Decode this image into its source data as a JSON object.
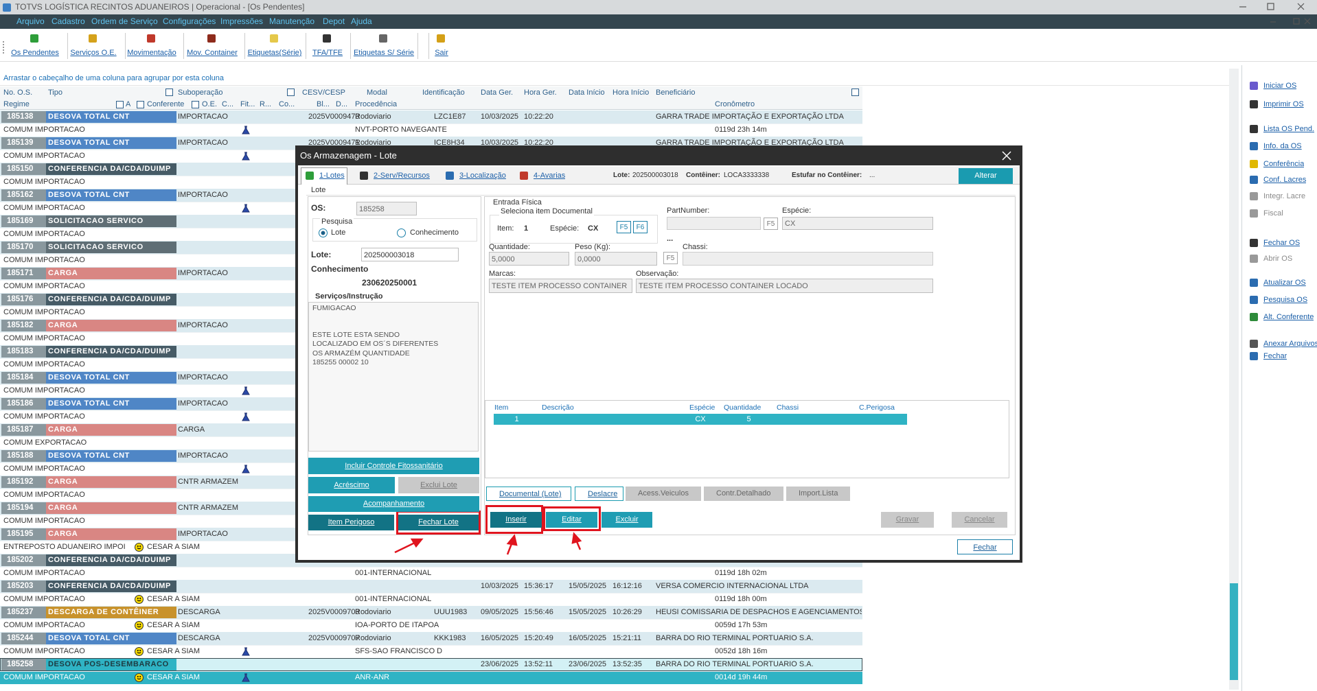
{
  "window_title": "TOTVS LOGÍSTICA RECINTOS ADUANEIROS | Operacional - [Os Pendentes]",
  "menu": [
    "Arquivo",
    "Cadastro",
    "Ordem de Serviço",
    "Configurações",
    "Impressões",
    "Manutenção",
    "Depot",
    "Ajuda"
  ],
  "toolbar": [
    "Os Pendentes",
    "Serviços O.E.",
    "Movimentação",
    "Mov. Container",
    "Etiquetas(Série)",
    "TFA/TFE",
    "Etiquetas S/ Série",
    "Sair"
  ],
  "group_hint": "Arrastar o cabeçalho de uma coluna para agrupar por esta coluna",
  "columns": {
    "row1": [
      "No. O.S.",
      "Tipo",
      "Suboperação",
      "CESV/CESP",
      "Modal",
      "Identificação",
      "Data Ger.",
      "Hora Ger.",
      "Data Início",
      "Hora Início",
      "Beneficiário"
    ],
    "row2": [
      "Regime",
      "A",
      "Conferente",
      "O.E.",
      "C...",
      "Fit...",
      "R...",
      "Co...",
      "Bl...",
      "D...",
      "Procedência",
      "Cronômetro"
    ]
  },
  "rows": [
    {
      "os": "185138",
      "tipo": "DESOVA TOTAL CNT",
      "color": "#4f86c6",
      "subop": "IMPORTACAO",
      "cesv": "2025V0009473",
      "modal": "Rodoviario",
      "ident": "LZC1E87",
      "data_ger": "10/03/2025",
      "hora_ger": "10:22:20",
      "benef": "GARRA TRADE IMPORTAÇÃO E EXPORTAÇÃO LTDA",
      "regime": "COMUM IMPORTACAO",
      "flask": true,
      "proc": "NVT-PORTO NAVEGANTE",
      "crono": "0119d 23h 14m"
    },
    {
      "os": "185139",
      "tipo": "DESOVA TOTAL CNT",
      "color": "#4f86c6",
      "subop": "IMPORTACAO",
      "cesv": "2025V0009471",
      "modal": "Rodoviario",
      "ident": "ICE8H34",
      "data_ger": "10/03/2025",
      "hora_ger": "10:22:20",
      "benef": "GARRA TRADE IMPORTAÇÃO E EXPORTAÇÃO LTDA",
      "regime": "COMUM IMPORTACAO",
      "flask": true
    },
    {
      "os": "185150",
      "tipo": "CONFERENCIA DA/CDA/DUIMP",
      "color": "#465b66",
      "regime": "COMUM IMPORTACAO"
    },
    {
      "os": "185162",
      "tipo": "DESOVA TOTAL CNT",
      "color": "#4f86c6",
      "subop": "IMPORTACAO",
      "regime": "COMUM IMPORTACAO",
      "flask": true
    },
    {
      "os": "185169",
      "tipo": "SOLICITACAO SERVICO",
      "color": "#5f6e75",
      "regime": "COMUM IMPORTACAO"
    },
    {
      "os": "185170",
      "tipo": "SOLICITACAO SERVICO",
      "color": "#5f6e75",
      "regime": "COMUM IMPORTACAO"
    },
    {
      "os": "185171",
      "tipo": "CARGA",
      "color": "#d98683",
      "subop": "IMPORTACAO",
      "regime": "COMUM IMPORTACAO"
    },
    {
      "os": "185176",
      "tipo": "CONFERENCIA DA/CDA/DUIMP",
      "color": "#465b66",
      "regime": "COMUM IMPORTACAO"
    },
    {
      "os": "185182",
      "tipo": "CARGA",
      "color": "#d98683",
      "subop": "IMPORTACAO",
      "regime": "COMUM IMPORTACAO"
    },
    {
      "os": "185183",
      "tipo": "CONFERENCIA DA/CDA/DUIMP",
      "color": "#465b66",
      "regime": "COMUM IMPORTACAO"
    },
    {
      "os": "185184",
      "tipo": "DESOVA TOTAL CNT",
      "color": "#4f86c6",
      "subop": "IMPORTACAO",
      "regime": "COMUM IMPORTACAO",
      "flask": true
    },
    {
      "os": "185186",
      "tipo": "DESOVA TOTAL CNT",
      "color": "#4f86c6",
      "subop": "IMPORTACAO",
      "regime": "COMUM IMPORTACAO",
      "flask": true
    },
    {
      "os": "185187",
      "tipo": "CARGA",
      "color": "#d98683",
      "subop": "CARGA",
      "regime": "COMUM EXPORTACAO"
    },
    {
      "os": "185188",
      "tipo": "DESOVA TOTAL CNT",
      "color": "#4f86c6",
      "subop": "IMPORTACAO",
      "regime": "COMUM IMPORTACAO",
      "flask": true
    },
    {
      "os": "185192",
      "tipo": "CARGA",
      "color": "#d98683",
      "subop": "CNTR ARMAZEM",
      "regime": "COMUM IMPORTACAO"
    },
    {
      "os": "185194",
      "tipo": "CARGA",
      "color": "#d98683",
      "subop": "CNTR ARMAZEM",
      "regime": "COMUM IMPORTACAO"
    },
    {
      "os": "185195",
      "tipo": "CARGA",
      "color": "#d98683",
      "subop": "IMPORTACAO",
      "regime": "ENTREPOSTO ADUANEIRO IMPOI",
      "conferente": "CESAR A SIAM"
    },
    {
      "os": "185202",
      "tipo": "CONFERENCIA DA/CDA/DUIMP",
      "color": "#465b66",
      "regime": "COMUM IMPORTACAO",
      "proc": "001-INTERNACIONAL",
      "crono": "0119d 18h 02m"
    },
    {
      "os": "185203",
      "tipo": "CONFERENCIA DA/CDA/DUIMP",
      "color": "#465b66",
      "data_ger": "10/03/2025",
      "hora_ger": "15:36:17",
      "data_ini": "15/05/2025",
      "hora_ini": "16:12:16",
      "benef": "VERSA COMERCIO INTERNACIONAL LTDA",
      "regime": "COMUM IMPORTACAO",
      "conferente": "CESAR A SIAM",
      "proc": "001-INTERNACIONAL",
      "crono": "0119d 18h 00m"
    },
    {
      "os": "185237",
      "tipo": "DESCARGA DE CONTÊINER",
      "color": "#c8922c",
      "subop": "DESCARGA",
      "cesv": "2025V0009703",
      "modal": "Rodoviario",
      "ident": "UUU1983",
      "data_ger": "09/05/2025",
      "hora_ger": "15:56:46",
      "data_ini": "15/05/2025",
      "hora_ini": "10:26:29",
      "benef": "HEUSI COMISSARIA DE DESPACHOS E AGENCIAMENTOS",
      "regime": "COMUM IMPORTACAO",
      "conferente": "CESAR A SIAM",
      "proc": "IOA-PORTO DE ITAPOA",
      "crono": "0059d 17h 53m"
    },
    {
      "os": "185244",
      "tipo": "DESOVA TOTAL CNT",
      "color": "#4f86c6",
      "subop": "DESCARGA",
      "cesv": "2025V0009707",
      "modal": "Rodoviario",
      "ident": "KKK1983",
      "data_ger": "16/05/2025",
      "hora_ger": "15:20:49",
      "data_ini": "16/05/2025",
      "hora_ini": "15:21:11",
      "benef": "BARRA DO RIO TERMINAL PORTUARIO S.A.",
      "regime": "COMUM IMPORTACAO",
      "conferente": "CESAR A SIAM",
      "flask": true,
      "proc": "SFS-SAO FRANCISCO D",
      "crono": "0052d 18h 16m"
    },
    {
      "os": "185258",
      "tipo": "DESOVA POS-DESEMBARACO",
      "color": "#2fb3c4",
      "selected": true,
      "data_ger": "23/06/2025",
      "hora_ger": "13:52:11",
      "data_ini": "23/06/2025",
      "hora_ini": "13:52:35",
      "benef": "BARRA DO RIO TERMINAL PORTUARIO S.A.",
      "regime": "COMUM IMPORTACAO",
      "conferente": "CESAR A SIAM",
      "flask": true,
      "proc": "ANR-ANR",
      "crono": "0014d 19h 44m"
    }
  ],
  "sidebar": [
    {
      "label": "Iniciar OS"
    },
    {
      "label": "Imprimir OS"
    },
    {
      "label": "Lista OS Pend."
    },
    {
      "label": "Info. da OS"
    },
    {
      "label": "Conferência"
    },
    {
      "label": "Conf. Lacres"
    },
    {
      "label": "Integr. Lacre",
      "enabled": false
    },
    {
      "label": "Fiscal",
      "enabled": false
    },
    {
      "label": "Fechar OS"
    },
    {
      "label": "Abrir OS",
      "enabled": false
    },
    {
      "label": "Atualizar OS"
    },
    {
      "label": "Pesquisa OS"
    },
    {
      "label": "Alt. Conferente"
    },
    {
      "label": "Anexar Arquivos"
    },
    {
      "label": "Fechar"
    }
  ],
  "dialog": {
    "title": "Os Armazenagem - Lote",
    "tabs": [
      "1-Lotes",
      "2-Serv/Recursos",
      "3-Localização",
      "4-Avarias"
    ],
    "lote_info_label": "Lote:",
    "lote_info": "202500003018",
    "container_label": "Contêiner:",
    "container": "LOCA3333338",
    "estufar_label": "Estufar no Contêiner:",
    "estufar": "...",
    "alterar": "Alterar",
    "section": "Lote",
    "os_label": "OS:",
    "os": "185258",
    "pesquisa": "Pesquisa",
    "radios": [
      "Lote",
      "Conhecimento"
    ],
    "lote_label": "Lote:",
    "lote": "202500003018",
    "conhecimento_label": "Conhecimento",
    "conhecimento": "230620250001",
    "servicos_label": "Serviços/Instrução",
    "servicos_title": "FUMIGACAO",
    "servicos_text": [
      "ESTE LOTE ESTA SENDO",
      "LOCALIZADO EM OS´S DIFERENTES",
      "OS  ARMAZÉM  QUANTIDADE",
      "185255  00002      10"
    ],
    "left_buttons": [
      "Incluir Controle Fitossanitário",
      "Acréscimo",
      "Exclui Lote",
      "Acompanhamento",
      "Item Perigoso",
      "Fechar Lote"
    ],
    "entrada": "Entrada Física",
    "seleciona": "Seleciona item Documental",
    "item_label": "Item:",
    "item": "1",
    "especie_label": "Espécie:",
    "especie": "CX",
    "fkeys": [
      "F5",
      "F6",
      "F5",
      "F5"
    ],
    "partnumber_label": "PartNumber:",
    "especie2_label": "Espécie:",
    "especie2": "CX",
    "ellipsis": "...",
    "quantidade_label": "Quantidade:",
    "quantidade": "5,0000",
    "peso_label": "Peso (Kg):",
    "peso": "0,0000",
    "chassi_label": "Chassi:",
    "marcas_label": "Marcas:",
    "marcas": "TESTE ITEM PROCESSO CONTAINER",
    "obs_label": "Observação:",
    "obs": "TESTE ITEM PROCESSO CONTAINER LOCADO",
    "table": {
      "columns": [
        "Item",
        "Descrição",
        "Espécie",
        "Quantidade",
        "Chassi",
        "C.Perigosa"
      ],
      "rows": [
        {
          "item": 1,
          "especie": "CX",
          "quantidade": 5
        }
      ]
    },
    "bottom_tabs": [
      "Documental (Lote)",
      "Deslacre",
      "Acess.Veiculos",
      "Contr.Detalhado",
      "Import.Lista"
    ],
    "actions": [
      "Inserir",
      "Editar",
      "Excluir",
      "Gravar",
      "Cancelar"
    ],
    "fechar": "Fechar"
  }
}
